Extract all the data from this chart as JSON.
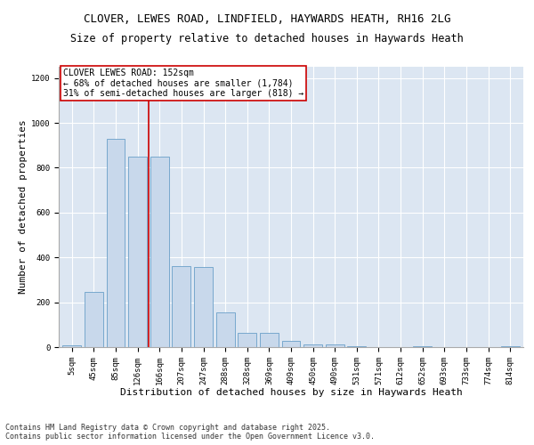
{
  "title_line1": "CLOVER, LEWES ROAD, LINDFIELD, HAYWARDS HEATH, RH16 2LG",
  "title_line2": "Size of property relative to detached houses in Haywards Heath",
  "xlabel": "Distribution of detached houses by size in Haywards Heath",
  "ylabel": "Number of detached properties",
  "bar_color": "#c8d8eb",
  "bar_edge_color": "#6a9fc8",
  "background_color": "#dce6f2",
  "grid_color": "#ffffff",
  "categories": [
    "5sqm",
    "45sqm",
    "85sqm",
    "126sqm",
    "166sqm",
    "207sqm",
    "247sqm",
    "288sqm",
    "328sqm",
    "369sqm",
    "409sqm",
    "450sqm",
    "490sqm",
    "531sqm",
    "571sqm",
    "612sqm",
    "652sqm",
    "693sqm",
    "733sqm",
    "774sqm",
    "814sqm"
  ],
  "values": [
    8,
    248,
    930,
    848,
    848,
    360,
    358,
    155,
    62,
    62,
    28,
    13,
    13,
    5,
    0,
    0,
    5,
    0,
    0,
    0,
    5
  ],
  "ylim": [
    0,
    1250
  ],
  "yticks": [
    0,
    200,
    400,
    600,
    800,
    1000,
    1200
  ],
  "vline_x": 3.5,
  "annotation_line1": "CLOVER LEWES ROAD: 152sqm",
  "annotation_line2": "← 68% of detached houses are smaller (1,784)",
  "annotation_line3": "31% of semi-detached houses are larger (818) →",
  "annotation_box_color": "#ffffff",
  "annotation_box_edge": "#cc0000",
  "vline_color": "#cc0000",
  "footer_line1": "Contains HM Land Registry data © Crown copyright and database right 2025.",
  "footer_line2": "Contains public sector information licensed under the Open Government Licence v3.0.",
  "title_fontsize": 9,
  "title2_fontsize": 8.5,
  "xlabel_fontsize": 8,
  "ylabel_fontsize": 8,
  "tick_fontsize": 6.5,
  "annotation_fontsize": 7,
  "footer_fontsize": 6
}
